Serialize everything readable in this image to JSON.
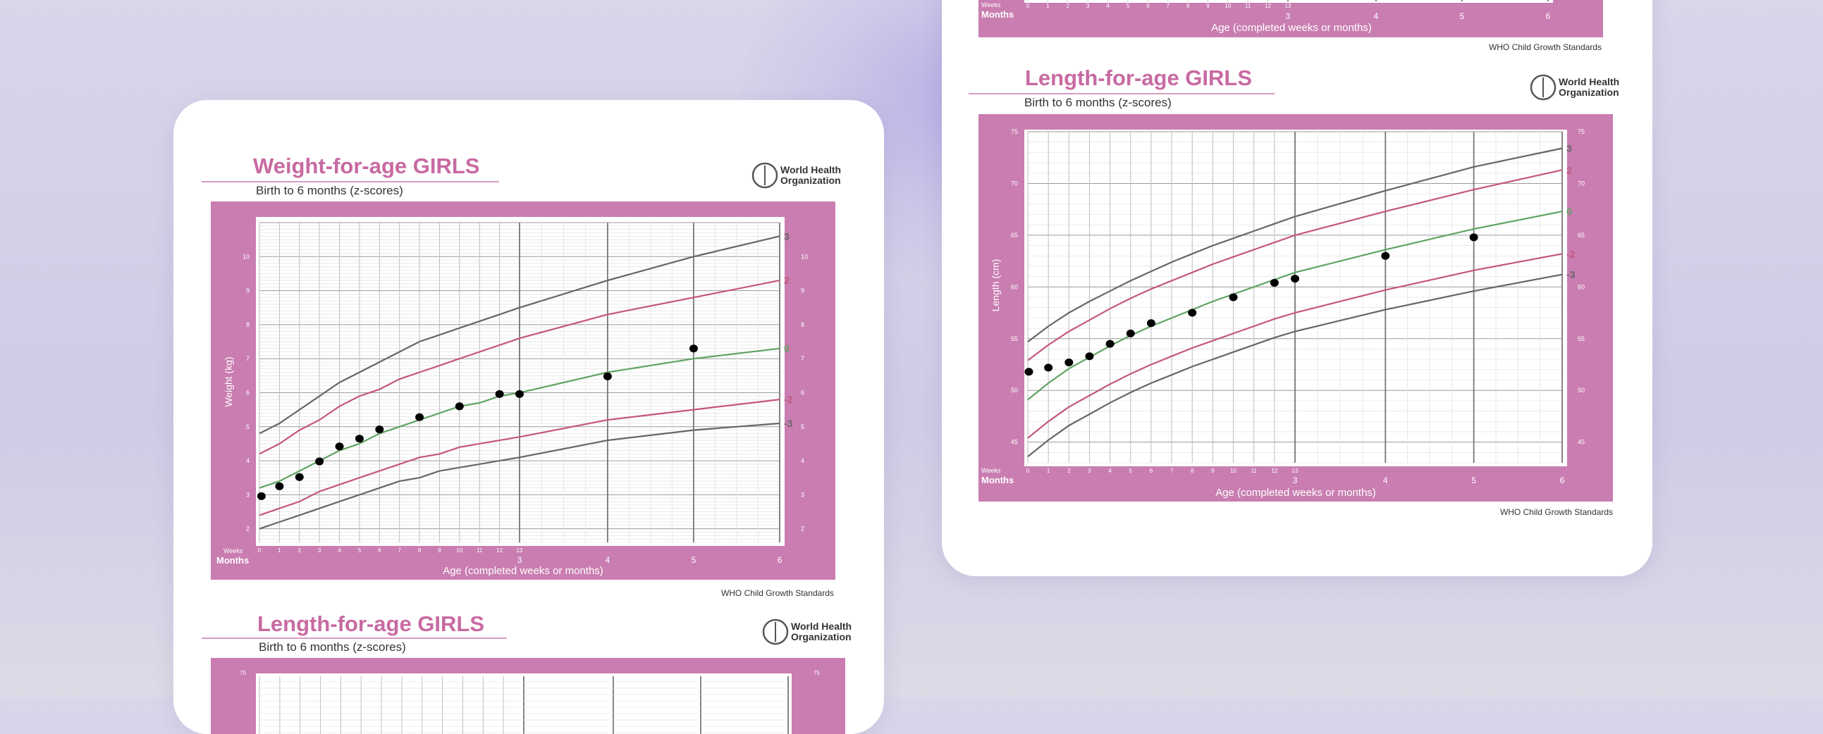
{
  "colors": {
    "frame": "#c97db0",
    "grid": "#cfcfcf",
    "z3": "#666666",
    "z2": "#c4567e",
    "z0": "#5fa463",
    "dot": "#000000"
  },
  "icons": {
    "who_logo": "who-emblem-icon"
  },
  "chart_data": [
    {
      "type": "line",
      "title": "Weight-for-age GIRLS",
      "subtitle": "Birth to 6 months (z-scores)",
      "brand": {
        "line1": "World Health",
        "line2": "Organization"
      },
      "source": "WHO Child Growth Standards",
      "ylabel": "Weight (kg)",
      "xlabel": "Age (completed weeks or months)",
      "x_unit_weeks": "Weeks",
      "x_unit_months": "Months",
      "ylim": [
        1.6,
        11
      ],
      "yticks": [
        2,
        3,
        4,
        5,
        6,
        7,
        8,
        9,
        10
      ],
      "week_ticks": [
        0,
        1,
        2,
        3,
        4,
        5,
        6,
        7,
        8,
        9,
        10,
        11,
        12,
        13
      ],
      "month_ticks": [
        3,
        4,
        5,
        6
      ],
      "x": [
        0,
        1,
        2,
        3,
        4,
        5,
        6,
        7,
        8,
        9,
        10,
        11,
        12,
        13,
        17.4,
        21.7,
        26
      ],
      "series": [
        {
          "name": "3",
          "values": [
            4.8,
            5.1,
            5.5,
            5.9,
            6.3,
            6.6,
            6.9,
            7.2,
            7.5,
            7.7,
            7.9,
            8.1,
            8.3,
            8.5,
            9.3,
            10.0,
            10.6
          ]
        },
        {
          "name": "2",
          "values": [
            4.2,
            4.5,
            4.9,
            5.2,
            5.6,
            5.9,
            6.1,
            6.4,
            6.6,
            6.8,
            7.0,
            7.2,
            7.4,
            7.6,
            8.3,
            8.8,
            9.3
          ]
        },
        {
          "name": "0",
          "values": [
            3.2,
            3.4,
            3.7,
            4.0,
            4.3,
            4.5,
            4.8,
            5.0,
            5.2,
            5.4,
            5.6,
            5.7,
            5.9,
            6.0,
            6.6,
            7.0,
            7.3
          ]
        },
        {
          "name": "-2",
          "values": [
            2.4,
            2.6,
            2.8,
            3.1,
            3.3,
            3.5,
            3.7,
            3.9,
            4.1,
            4.2,
            4.4,
            4.5,
            4.6,
            4.7,
            5.2,
            5.5,
            5.8
          ]
        },
        {
          "name": "-3",
          "values": [
            2.0,
            2.2,
            2.4,
            2.6,
            2.8,
            3.0,
            3.2,
            3.4,
            3.5,
            3.7,
            3.8,
            3.9,
            4.0,
            4.1,
            4.6,
            4.9,
            5.1
          ]
        }
      ],
      "points": [
        {
          "x": 0.1,
          "y": 2.96
        },
        {
          "x": 1,
          "y": 3.25
        },
        {
          "x": 2,
          "y": 3.52
        },
        {
          "x": 3,
          "y": 3.98
        },
        {
          "x": 4,
          "y": 4.42
        },
        {
          "x": 5,
          "y": 4.65
        },
        {
          "x": 6,
          "y": 4.92
        },
        {
          "x": 8,
          "y": 5.28
        },
        {
          "x": 10,
          "y": 5.6
        },
        {
          "x": 12,
          "y": 5.96
        },
        {
          "x": 13,
          "y": 5.96
        },
        {
          "x": 17.4,
          "y": 6.48
        },
        {
          "x": 21.7,
          "y": 7.3
        }
      ]
    },
    {
      "type": "line",
      "title": "Length-for-age GIRLS",
      "subtitle": "Birth to 6 months (z-scores)",
      "brand": {
        "line1": "World Health",
        "line2": "Organization"
      },
      "source": "WHO Child Growth Standards",
      "ylabel": "Length (cm)",
      "xlabel": "Age (completed weeks or months)",
      "x_unit_weeks": "Weeks",
      "x_unit_months": "Months",
      "ylim": [
        43,
        75
      ],
      "yticks": [
        45,
        50,
        55,
        60,
        65,
        70,
        75
      ],
      "week_ticks": [
        0,
        1,
        2,
        3,
        4,
        5,
        6,
        7,
        8,
        9,
        10,
        11,
        12,
        13
      ],
      "month_ticks": [
        3,
        4,
        5,
        6
      ],
      "x": [
        0,
        1,
        2,
        3,
        4,
        5,
        6,
        7,
        8,
        9,
        10,
        11,
        12,
        13,
        17.4,
        21.7,
        26
      ],
      "series": [
        {
          "name": "3",
          "values": [
            54.7,
            56.2,
            57.5,
            58.6,
            59.6,
            60.6,
            61.5,
            62.4,
            63.2,
            64.0,
            64.7,
            65.4,
            66.1,
            66.8,
            69.3,
            71.6,
            73.4
          ]
        },
        {
          "name": "2",
          "values": [
            52.9,
            54.4,
            55.7,
            56.8,
            57.9,
            58.9,
            59.8,
            60.6,
            61.4,
            62.2,
            62.9,
            63.6,
            64.3,
            65.0,
            67.3,
            69.4,
            71.3
          ]
        },
        {
          "name": "0",
          "values": [
            49.1,
            50.7,
            52.1,
            53.2,
            54.3,
            55.3,
            56.2,
            57.0,
            57.8,
            58.6,
            59.3,
            60.0,
            60.7,
            61.4,
            63.6,
            65.6,
            67.3
          ]
        },
        {
          "name": "-2",
          "values": [
            45.4,
            47.0,
            48.4,
            49.5,
            50.6,
            51.6,
            52.5,
            53.3,
            54.1,
            54.8,
            55.5,
            56.2,
            56.9,
            57.5,
            59.7,
            61.6,
            63.2
          ]
        },
        {
          "name": "-3",
          "values": [
            43.6,
            45.2,
            46.6,
            47.7,
            48.8,
            49.8,
            50.7,
            51.5,
            52.3,
            53.0,
            53.7,
            54.4,
            55.1,
            55.7,
            57.8,
            59.6,
            61.2
          ]
        }
      ],
      "points": [
        {
          "x": 0.05,
          "y": 51.8
        },
        {
          "x": 1,
          "y": 52.2
        },
        {
          "x": 2,
          "y": 52.7
        },
        {
          "x": 3,
          "y": 53.3
        },
        {
          "x": 4,
          "y": 54.5
        },
        {
          "x": 5,
          "y": 55.5
        },
        {
          "x": 6,
          "y": 56.5
        },
        {
          "x": 8,
          "y": 57.5
        },
        {
          "x": 10,
          "y": 59.0
        },
        {
          "x": 12,
          "y": 60.4
        },
        {
          "x": 13,
          "y": 60.8
        },
        {
          "x": 17.4,
          "y": 63.0
        },
        {
          "x": 21.7,
          "y": 64.8
        }
      ]
    },
    {
      "type": "line",
      "title": "Length-for-age GIRLS",
      "subtitle": "Birth to 6 months (z-scores)",
      "brand": {
        "line1": "World Health",
        "line2": "Organization"
      },
      "yticks": [
        75
      ]
    }
  ],
  "top_stub": {
    "x_unit_weeks": "Weeks",
    "x_unit_months": "Months",
    "week_ticks": [
      0,
      1,
      2,
      3,
      4,
      5,
      6,
      7,
      8,
      9,
      10,
      11,
      12,
      13
    ],
    "month_ticks": [
      3,
      4,
      5,
      6
    ],
    "xlabel": "Age (completed weeks or months)",
    "source": "WHO Child Growth Standards"
  }
}
